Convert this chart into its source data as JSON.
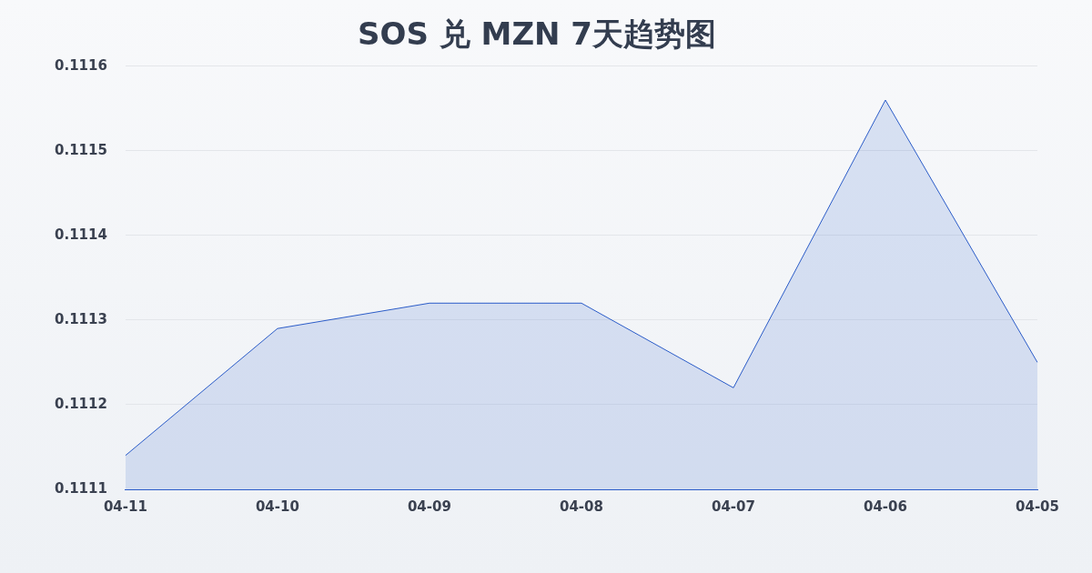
{
  "chart_data": {
    "type": "area",
    "title": "SOS 兑 MZN 7天趋势图",
    "categories": [
      "04-11",
      "04-10",
      "04-09",
      "04-08",
      "04-07",
      "04-06",
      "04-05"
    ],
    "series": [
      {
        "color": "#2b5cc8",
        "values": [
          0.11114,
          0.11129,
          0.11132,
          0.11132,
          0.11122,
          0.11156,
          0.11125
        ]
      }
    ],
    "ylim": [
      0.1111,
      0.1116
    ],
    "yticks": [
      0.1111,
      0.1112,
      0.1113,
      0.1114,
      0.1115,
      0.1116
    ],
    "grid": "y",
    "legend": false,
    "marker": "none",
    "line_style": "solid"
  }
}
